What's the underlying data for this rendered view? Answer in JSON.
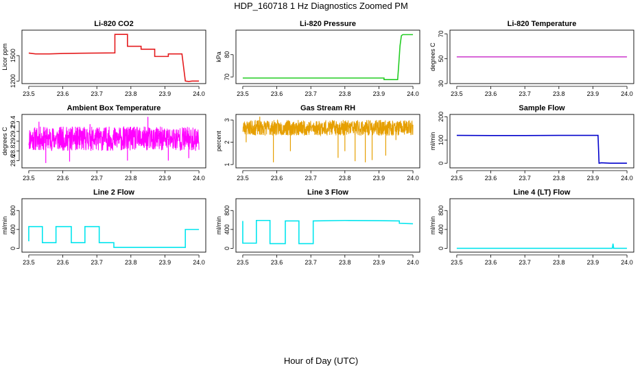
{
  "figure": {
    "title": "HDP_160718  1 Hz Diagnostics Zoomed PM",
    "xlabel": "Hour of Day (UTC)"
  },
  "chart_data": [
    {
      "type": "line",
      "title": "Li-820 CO2",
      "ylabel": "Licor ppm",
      "color": "#e41a1c",
      "xlim": [
        23.48,
        24.02
      ],
      "ylim": [
        1170,
        1800
      ],
      "xticks": [
        "23.5",
        "23.6",
        "23.7",
        "23.8",
        "23.9",
        "24.0"
      ],
      "yticks": [
        1200,
        1500
      ],
      "series": [
        {
          "x": [
            23.5,
            23.52,
            23.56,
            23.6,
            23.65,
            23.7,
            23.753,
            23.753,
            23.79,
            23.79,
            23.83,
            23.83,
            23.87,
            23.87,
            23.91,
            23.91,
            23.95,
            23.96,
            23.96,
            23.97,
            23.98,
            24.0
          ],
          "y": [
            1530,
            1520,
            1520,
            1525,
            1528,
            1530,
            1532,
            1750,
            1750,
            1610,
            1610,
            1575,
            1575,
            1490,
            1490,
            1520,
            1520,
            1200,
            1200,
            1195,
            1200,
            1200
          ]
        }
      ]
    },
    {
      "type": "line",
      "title": "Li-820 Pressure",
      "ylabel": "kPa",
      "color": "#22cc22",
      "xlim": [
        23.48,
        24.02
      ],
      "ylim": [
        67,
        91
      ],
      "xticks": [
        "23.5",
        "23.6",
        "23.7",
        "23.8",
        "23.9",
        "24.0"
      ],
      "yticks": [
        70,
        80
      ],
      "series": [
        {
          "x": [
            23.5,
            23.6,
            23.7,
            23.8,
            23.9,
            23.915,
            23.915,
            23.955,
            23.958,
            23.962,
            23.966,
            23.97,
            23.98,
            24.0
          ],
          "y": [
            69.5,
            69.5,
            69.5,
            69.5,
            69.5,
            69.5,
            68.8,
            68.8,
            75,
            84,
            88.5,
            89,
            89,
            89
          ]
        }
      ]
    },
    {
      "type": "line",
      "title": "Li-820 Temperature",
      "ylabel": "degrees C",
      "color": "#cc33cc",
      "xlim": [
        23.48,
        24.02
      ],
      "ylim": [
        30,
        73
      ],
      "xticks": [
        "23.5",
        "23.6",
        "23.7",
        "23.8",
        "23.9",
        "24.0"
      ],
      "yticks": [
        30,
        50,
        70
      ],
      "series": [
        {
          "x": [
            23.5,
            24.0
          ],
          "y": [
            51.5,
            51.5
          ]
        }
      ]
    },
    {
      "type": "line",
      "title": "Ambient Box Temperature",
      "ylabel": "degrees C",
      "color": "#ff00ff",
      "noise": true,
      "noise_seed": 11,
      "xlim": [
        23.48,
        24.02
      ],
      "ylim": [
        28.45,
        29.55
      ],
      "xticks": [
        "23.5",
        "23.6",
        "23.7",
        "23.8",
        "23.9",
        "24.0"
      ],
      "yticks": [
        28.6,
        28.8,
        29.0,
        29.2,
        29.4
      ],
      "base": 29.05,
      "band": [
        28.8,
        29.3
      ],
      "spikes": [
        [
          23.55,
          28.55
        ],
        [
          23.62,
          28.58
        ],
        [
          23.85,
          29.5
        ],
        [
          23.79,
          28.6
        ],
        [
          23.97,
          28.65
        ],
        [
          23.53,
          29.4
        ],
        [
          23.68,
          29.35
        ],
        [
          23.91,
          28.6
        ]
      ],
      "series": [
        {
          "x": [
            23.5,
            24.0
          ],
          "y": [
            29.05,
            29.05
          ]
        }
      ]
    },
    {
      "type": "line",
      "title": "Gas Stream RH",
      "ylabel": "percent",
      "color": "#e69f00",
      "noise": true,
      "noise_seed": 23,
      "xlim": [
        23.48,
        24.02
      ],
      "ylim": [
        0.85,
        3.25
      ],
      "xticks": [
        "23.5",
        "23.6",
        "23.7",
        "23.8",
        "23.9",
        "24.0"
      ],
      "yticks": [
        1.0,
        2.0,
        3.0
      ],
      "base": 2.65,
      "band": [
        2.3,
        3.0
      ],
      "spikes": [
        [
          23.59,
          1.1
        ],
        [
          23.51,
          2.0
        ],
        [
          23.64,
          1.6
        ],
        [
          23.78,
          1.3
        ],
        [
          23.83,
          1.15
        ],
        [
          23.8,
          1.6
        ],
        [
          23.86,
          1.1
        ],
        [
          23.88,
          1.2
        ],
        [
          23.92,
          1.4
        ],
        [
          23.95,
          2.1
        ],
        [
          23.55,
          3.15
        ]
      ],
      "series": [
        {
          "x": [
            23.5,
            24.0
          ],
          "y": [
            2.65,
            2.65
          ]
        }
      ]
    },
    {
      "type": "line",
      "title": "Sample Flow",
      "ylabel": "ml/min",
      "color": "#0000cc",
      "xlim": [
        23.48,
        24.02
      ],
      "ylim": [
        -20,
        210
      ],
      "xticks": [
        "23.5",
        "23.6",
        "23.7",
        "23.8",
        "23.9",
        "24.0"
      ],
      "yticks": [
        0,
        100,
        200
      ],
      "series": [
        {
          "x": [
            23.5,
            23.6,
            23.7,
            23.8,
            23.9,
            23.915,
            23.918,
            23.925,
            23.95,
            24.0
          ],
          "y": [
            120,
            119,
            119,
            120,
            120,
            120,
            0,
            2,
            0,
            0
          ]
        }
      ]
    },
    {
      "type": "line",
      "title": "Line 2 Flow",
      "ylabel": "ml/min",
      "color": "#00e5ee",
      "xlim": [
        23.48,
        24.02
      ],
      "ylim": [
        -80,
        1050
      ],
      "xticks": [
        "23.5",
        "23.6",
        "23.7",
        "23.8",
        "23.9",
        "24.0"
      ],
      "yticks": [
        0,
        400,
        800
      ],
      "series": [
        {
          "x": [
            23.5,
            23.5,
            23.54,
            23.54,
            23.58,
            23.58,
            23.625,
            23.625,
            23.665,
            23.665,
            23.707,
            23.707,
            23.75,
            23.75,
            23.96,
            23.96,
            24.0
          ],
          "y": [
            150,
            460,
            460,
            120,
            120,
            460,
            460,
            120,
            120,
            460,
            460,
            120,
            120,
            20,
            20,
            400,
            400
          ]
        }
      ]
    },
    {
      "type": "line",
      "title": "Line 3 Flow",
      "ylabel": "ml/min",
      "color": "#00e5ee",
      "xlim": [
        23.48,
        24.02
      ],
      "ylim": [
        -80,
        1050
      ],
      "xticks": [
        "23.5",
        "23.6",
        "23.7",
        "23.8",
        "23.9",
        "24.0"
      ],
      "yticks": [
        0,
        400,
        800
      ],
      "series": [
        {
          "x": [
            23.5,
            23.5,
            23.5,
            23.54,
            23.54,
            23.58,
            23.58,
            23.625,
            23.625,
            23.665,
            23.665,
            23.707,
            23.707,
            23.8,
            23.9,
            23.96,
            23.96,
            24.0
          ],
          "y": [
            580,
            580,
            110,
            110,
            590,
            590,
            100,
            100,
            580,
            580,
            100,
            100,
            580,
            590,
            585,
            580,
            530,
            520
          ]
        }
      ]
    },
    {
      "type": "line",
      "title": "Line 4 (LT) Flow",
      "ylabel": "ml/min",
      "color": "#00e5ee",
      "xlim": [
        23.48,
        24.02
      ],
      "ylim": [
        -80,
        1050
      ],
      "xticks": [
        "23.5",
        "23.6",
        "23.7",
        "23.8",
        "23.9",
        "24.0"
      ],
      "yticks": [
        0,
        400,
        800
      ],
      "series": [
        {
          "x": [
            23.5,
            23.8,
            23.957,
            23.959,
            23.961,
            24.0
          ],
          "y": [
            0,
            0,
            0,
            100,
            0,
            0
          ]
        }
      ]
    }
  ]
}
